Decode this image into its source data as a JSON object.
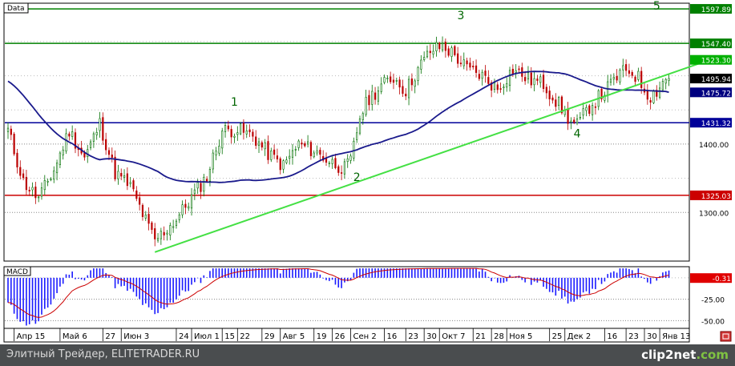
{
  "chart_data": [
    {
      "type": "candlestick",
      "panel_label": "Data",
      "ylim": [
        1230,
        1605
      ],
      "y_ticks": [
        1300,
        1400
      ],
      "y_tick_labels": [
        "1300.00",
        "1400.00"
      ],
      "x_tick_labels": [
        "Апр 15",
        "Май 6",
        "27",
        "Июн 3",
        "24",
        "Июл 1",
        "15",
        "22",
        "29",
        "Авг 5",
        "19",
        "26",
        "Сен 2",
        "16",
        "23",
        "30",
        "Окт 7",
        "21",
        "28",
        "Ноя 5",
        "25",
        "Дек 2",
        "16",
        "23",
        "30",
        "Янв 13"
      ],
      "x_tick_index": [
        2,
        17,
        31,
        37,
        55,
        60,
        70,
        75,
        83,
        89,
        100,
        106,
        112,
        123,
        130,
        136,
        141,
        152,
        158,
        163,
        177,
        182,
        195,
        202,
        208,
        213
      ],
      "last_close": 1495.94,
      "ma_value": 1475.72,
      "horizontal_levels": [
        {
          "value": 1597.89,
          "label": "1597.89",
          "color": "#008000"
        },
        {
          "value": 1547.4,
          "label": "1547.40",
          "color": "#008000"
        },
        {
          "value": 1523.3,
          "label": "1523.30",
          "color": "#00b000"
        },
        {
          "value": 1431.32,
          "label": "1431.32",
          "color": "#000099"
        },
        {
          "value": 1325.03,
          "label": "1325.03",
          "color": "#cc0000"
        }
      ],
      "price_badges": [
        {
          "label": "1495.94",
          "value": 1495.94,
          "color": "#000000"
        },
        {
          "label": "1475.72",
          "value": 1475.72,
          "color": "#000080"
        }
      ],
      "trendline": {
        "x": [
          48,
          226
        ],
        "y": [
          1242,
          1518
        ]
      },
      "wave_labels": [
        {
          "text": "1",
          "x": 74,
          "y": 1456
        },
        {
          "text": "2",
          "x": 114,
          "y": 1346
        },
        {
          "text": "3",
          "x": 148,
          "y": 1583
        },
        {
          "text": "4",
          "x": 186,
          "y": 1410
        },
        {
          "text": "5",
          "x": 212,
          "y": 1597
        }
      ],
      "colors": {
        "up": "#007000",
        "down": "#bb0000",
        "ma": "#1a1a8c",
        "trend": "#44e044"
      },
      "anchors_x": [
        0,
        5,
        10,
        15,
        20,
        25,
        30,
        35,
        40,
        45,
        48,
        55,
        60,
        65,
        70,
        75,
        80,
        85,
        90,
        95,
        100,
        105,
        110,
        112,
        115,
        118,
        122,
        126,
        130,
        134,
        138,
        142,
        146,
        150,
        155,
        160,
        165,
        170,
        175,
        180,
        184,
        186,
        190,
        195,
        200,
        203,
        206,
        208,
        210,
        212,
        214,
        216
      ],
      "anchors_y": [
        1420,
        1345,
        1320,
        1362,
        1420,
        1380,
        1430,
        1358,
        1338,
        1288,
        1258,
        1290,
        1322,
        1353,
        1420,
        1421,
        1412,
        1386,
        1368,
        1400,
        1390,
        1375,
        1364,
        1375,
        1440,
        1467,
        1485,
        1498,
        1478,
        1510,
        1536,
        1544,
        1530,
        1510,
        1500,
        1480,
        1510,
        1495,
        1488,
        1458,
        1432,
        1428,
        1455,
        1477,
        1503,
        1508,
        1497,
        1480,
        1470,
        1478,
        1492,
        1497
      ]
    },
    {
      "type": "macd",
      "panel_label": "MACD",
      "ylim": [
        -58,
        12
      ],
      "y_ticks": [
        -25,
        -50
      ],
      "y_tick_labels": [
        "-25.00",
        "-50.00"
      ],
      "last_value": -0.31,
      "last_label": "-0.31",
      "colors": {
        "histogram": "#1a1aff",
        "signal": "#cc0000"
      }
    }
  ],
  "footer": {
    "left_text": "Элитный Трейдер, ELITETRADER.RU",
    "logo_text": "clip2net",
    "logo_suffix": ".com"
  }
}
